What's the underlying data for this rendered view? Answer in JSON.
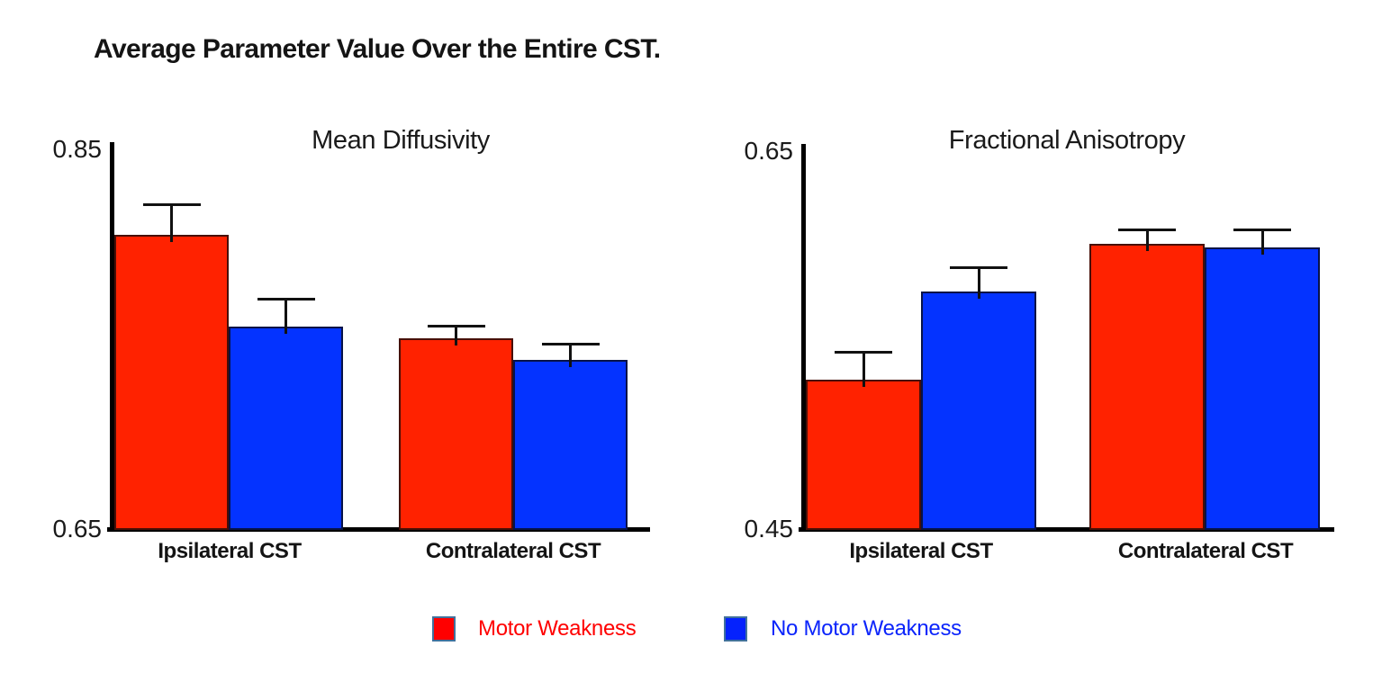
{
  "page_title": "Average Parameter Value Over the Entire CST.",
  "colors": {
    "motor_weakness_bar": "#FF2200",
    "no_motor_weakness_bar": "#0433FF",
    "legend_red_text": "#FF0000",
    "legend_blue_text": "#0B24FB",
    "axis": "#000000"
  },
  "chart_data": [
    {
      "type": "bar",
      "title": "Mean Diffusivity",
      "categories": [
        "Ipsilateral CST",
        "Contralateral CST"
      ],
      "series": [
        {
          "name": "Motor Weakness",
          "color": "#FF2200",
          "values": [
            0.802,
            0.748
          ],
          "errors": [
            0.016,
            0.007
          ]
        },
        {
          "name": "No Motor Weakness",
          "color": "#0433FF",
          "values": [
            0.754,
            0.737
          ],
          "errors": [
            0.015,
            0.009
          ]
        }
      ],
      "ylim": [
        0.65,
        0.85
      ],
      "ytick_top": "0.85",
      "ytick_bottom": "0.65",
      "grid": false,
      "error_bars": true
    },
    {
      "type": "bar",
      "title": "Fractional Anisotropy",
      "categories": [
        "Ipsilateral CST",
        "Contralateral CST"
      ],
      "series": [
        {
          "name": "Motor Weakness",
          "color": "#FF2200",
          "values": [
            0.527,
            0.598
          ],
          "errors": [
            0.015,
            0.008
          ]
        },
        {
          "name": "No Motor Weakness",
          "color": "#0433FF",
          "values": [
            0.573,
            0.596
          ],
          "errors": [
            0.013,
            0.01
          ]
        }
      ],
      "ylim": [
        0.45,
        0.65
      ],
      "ytick_top": "0.65",
      "ytick_bottom": "0.45",
      "grid": false,
      "error_bars": true
    }
  ],
  "legend": {
    "position": "bottom",
    "items": [
      {
        "label": "Motor Weakness",
        "swatch_color": "#FF0000",
        "text_color": "#FF0000"
      },
      {
        "label": "No Motor Weakness",
        "swatch_color": "#0522FD",
        "text_color": "#0B24FB"
      }
    ]
  }
}
